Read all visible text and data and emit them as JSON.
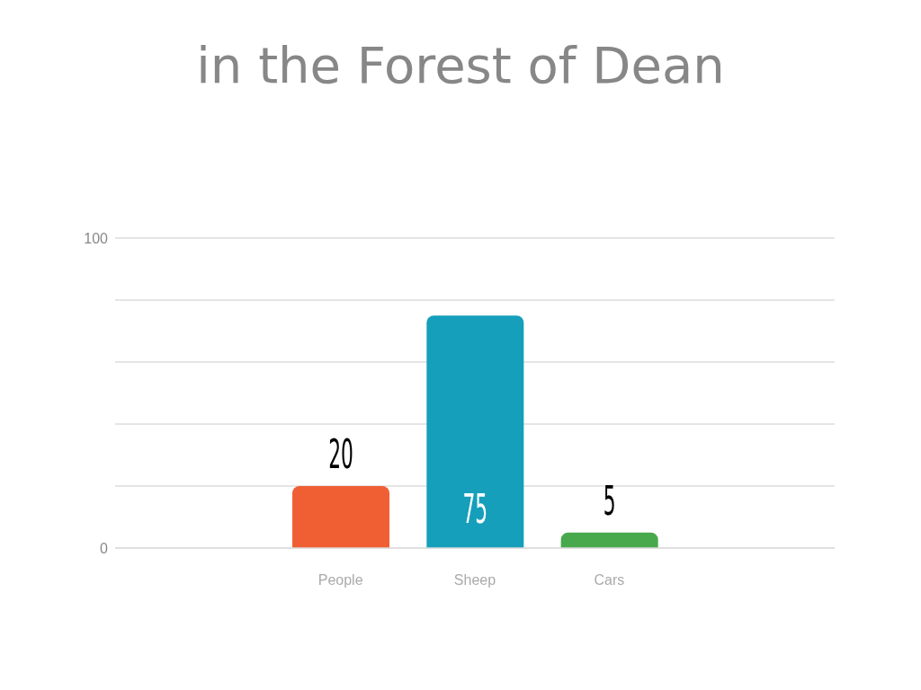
{
  "chart_data": {
    "type": "bar",
    "title": "in the Forest of Dean",
    "categories": [
      "People",
      "Sheep",
      "Cars"
    ],
    "values": [
      20,
      75,
      5
    ],
    "colors": [
      "#f05f34",
      "#159fbb",
      "#47a94b"
    ],
    "ylim": [
      0,
      100
    ],
    "yticks": [
      0,
      {
        "value": 20,
        "label": null
      },
      {
        "value": 40,
        "label": null
      },
      {
        "value": 60,
        "label": null
      },
      {
        "value": 80,
        "label": null
      },
      100
    ],
    "grid": "y",
    "data_labels": true
  }
}
